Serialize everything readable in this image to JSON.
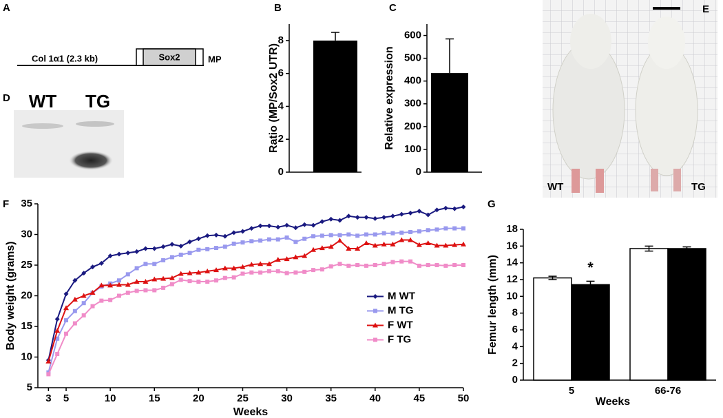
{
  "panels": {
    "A": {
      "letter": "A",
      "promoter": "Col 1α1 (2.3 kb)",
      "gene": "Sox2",
      "tag": "MP"
    },
    "D": {
      "letter": "D",
      "lanes": [
        "WT",
        "TG"
      ]
    },
    "E": {
      "letter": "E",
      "left": "WT",
      "right": "TG"
    }
  },
  "chart_data": [
    {
      "type": "bar",
      "panel_label": "B",
      "ylabel": "Ratio (MP/Sox2 UTR)",
      "values": [
        8
      ],
      "errors": [
        0.5
      ],
      "color": "#000000",
      "ylim": [
        0,
        9
      ],
      "yticks": [
        0,
        2,
        4,
        6,
        8
      ]
    },
    {
      "type": "bar",
      "panel_label": "C",
      "ylabel": "Relative expression",
      "values": [
        435
      ],
      "errors": [
        150
      ],
      "color": "#000000",
      "ylim": [
        0,
        650
      ],
      "yticks": [
        0,
        100,
        200,
        300,
        400,
        500,
        600
      ]
    },
    {
      "type": "line",
      "panel_label": "F",
      "xlabel": "Weeks",
      "ylabel": "Body weight (grams)",
      "x": [
        3,
        4,
        5,
        6,
        7,
        8,
        9,
        10,
        11,
        12,
        13,
        14,
        15,
        16,
        17,
        18,
        19,
        20,
        21,
        22,
        23,
        24,
        25,
        26,
        27,
        28,
        29,
        30,
        31,
        32,
        33,
        34,
        35,
        36,
        37,
        38,
        39,
        40,
        41,
        42,
        43,
        44,
        45,
        46,
        47,
        48,
        49,
        50
      ],
      "series": [
        {
          "name": "M WT",
          "color": "#1a1a80",
          "marker": "diamond",
          "values": [
            9.5,
            16.2,
            20.3,
            22.5,
            23.7,
            24.7,
            25.3,
            26.5,
            26.8,
            27.0,
            27.2,
            27.7,
            27.7,
            28.0,
            28.4,
            28.1,
            28.8,
            29.3,
            29.8,
            29.9,
            29.7,
            30.3,
            30.5,
            31.0,
            31.4,
            31.4,
            31.2,
            31.5,
            31.1,
            31.6,
            31.5,
            32.1,
            32.5,
            32.3,
            33.0,
            32.8,
            32.8,
            32.6,
            32.8,
            33.0,
            33.3,
            33.5,
            33.8,
            33.2,
            34.0,
            34.3,
            34.2,
            34.5
          ]
        },
        {
          "name": "M TG",
          "color": "#9999ee",
          "marker": "square",
          "values": [
            7.5,
            13.0,
            16.0,
            17.5,
            18.8,
            20.5,
            21.5,
            22.0,
            22.5,
            23.5,
            24.5,
            25.2,
            25.2,
            25.8,
            26.3,
            26.7,
            27.0,
            27.5,
            27.6,
            27.8,
            28.0,
            28.5,
            28.7,
            28.9,
            29.0,
            29.2,
            29.2,
            29.5,
            28.8,
            29.3,
            29.7,
            29.8,
            29.9,
            29.9,
            30.0,
            29.8,
            30.0,
            30.0,
            30.2,
            30.2,
            30.3,
            30.4,
            30.5,
            30.7,
            30.8,
            31.0,
            31.0,
            31.0
          ]
        },
        {
          "name": "F WT",
          "color": "#dd1111",
          "marker": "triangle",
          "values": [
            9.3,
            14.3,
            18.0,
            19.4,
            20.0,
            20.5,
            21.7,
            21.7,
            21.8,
            21.8,
            22.3,
            22.3,
            22.7,
            22.8,
            22.9,
            23.6,
            23.7,
            23.8,
            24.0,
            24.2,
            24.5,
            24.5,
            24.7,
            25.1,
            25.2,
            25.2,
            25.9,
            26.0,
            26.3,
            26.5,
            27.5,
            27.8,
            28.0,
            29.0,
            27.7,
            27.7,
            28.6,
            28.2,
            28.4,
            28.4,
            29.1,
            29.1,
            28.3,
            28.6,
            28.2,
            28.2,
            28.3,
            28.4
          ]
        },
        {
          "name": "F TG",
          "color": "#f08cc8",
          "marker": "square",
          "values": [
            7.2,
            10.5,
            13.8,
            15.5,
            16.8,
            18.3,
            19.2,
            19.3,
            20.0,
            20.5,
            20.8,
            20.9,
            20.9,
            21.3,
            21.9,
            22.6,
            22.4,
            22.3,
            22.3,
            22.5,
            22.9,
            23.0,
            23.6,
            23.8,
            23.8,
            24.0,
            24.0,
            23.7,
            23.8,
            23.9,
            24.2,
            24.3,
            24.8,
            25.2,
            24.9,
            25.0,
            24.9,
            25.0,
            25.2,
            25.5,
            25.6,
            25.6,
            24.9,
            25.0,
            25.0,
            24.9,
            25.0,
            25.0
          ]
        }
      ],
      "xlim": [
        1.8,
        50
      ],
      "xticks": [
        3,
        5,
        10,
        15,
        20,
        25,
        30,
        35,
        40,
        45,
        50
      ],
      "ylim": [
        5,
        35
      ],
      "yticks": [
        5,
        10,
        15,
        20,
        25,
        30,
        35
      ],
      "legend": "right"
    },
    {
      "type": "grouped-bar",
      "panel_label": "G",
      "xlabel": "Weeks",
      "ylabel": "Femur length (mm)",
      "categories": [
        "5",
        "66-76"
      ],
      "series": [
        {
          "color": "#ffffff",
          "values": [
            12.2,
            15.7
          ],
          "errors": [
            0.2,
            0.3
          ]
        },
        {
          "color": "#000000",
          "values": [
            11.4,
            15.7
          ],
          "errors": [
            0.4,
            0.2
          ]
        }
      ],
      "annotation": "*",
      "ylim": [
        0,
        18
      ],
      "yticks": [
        0,
        2,
        4,
        6,
        8,
        10,
        12,
        14,
        16,
        18
      ]
    }
  ]
}
